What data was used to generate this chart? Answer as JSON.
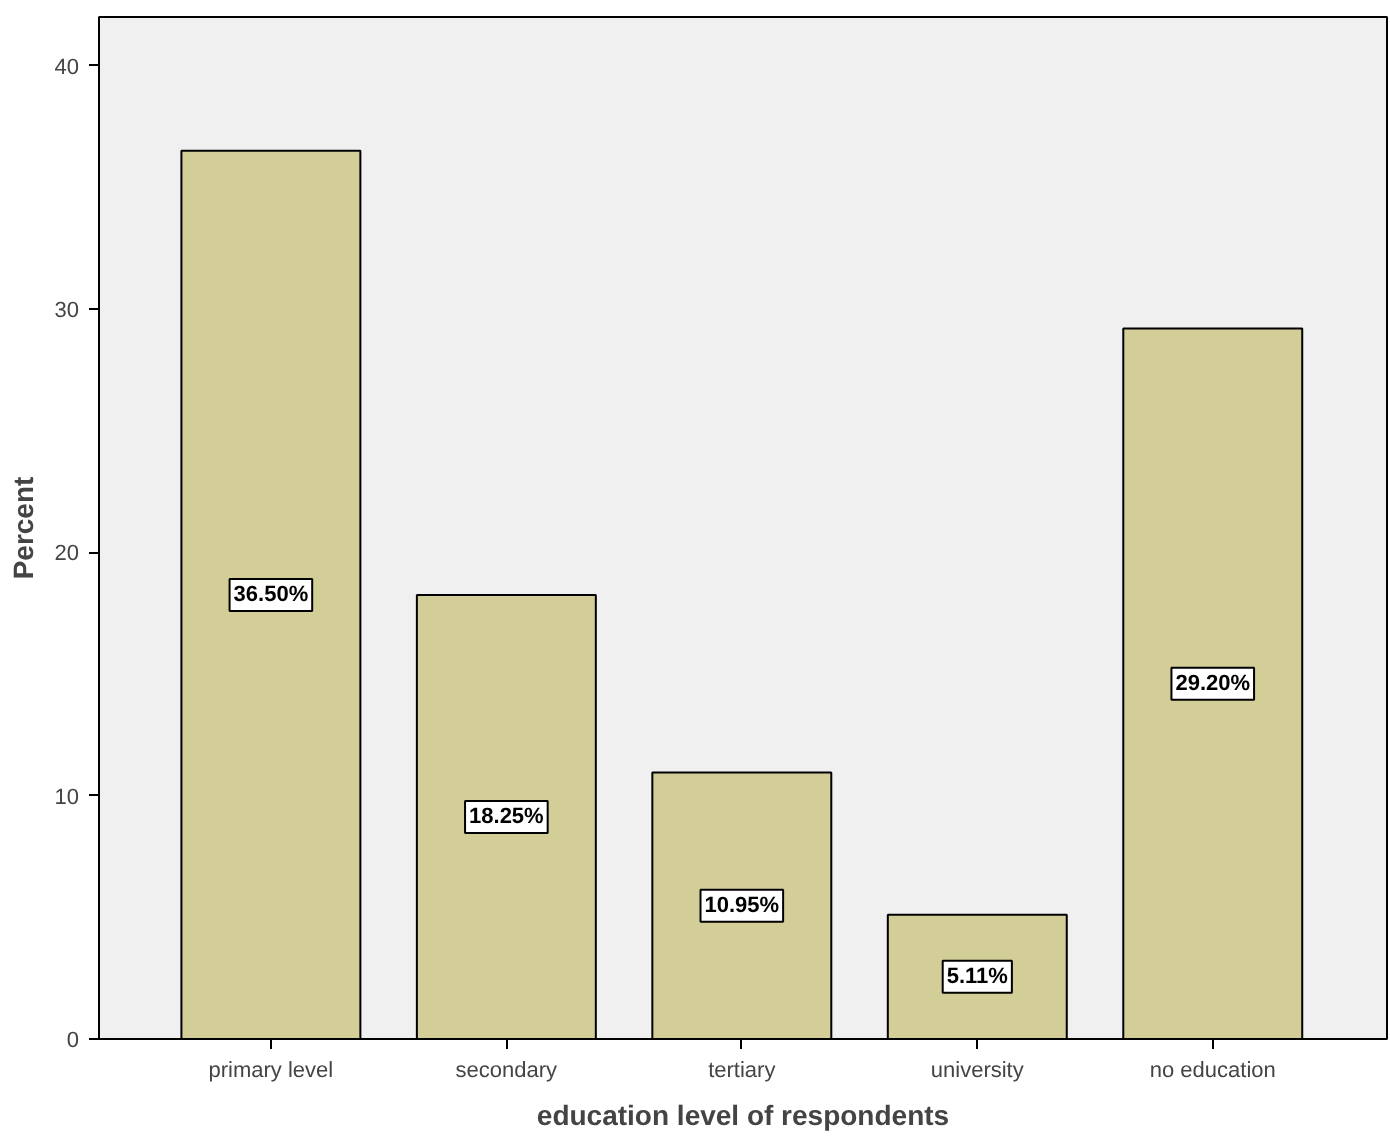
{
  "chart_data": {
    "type": "bar",
    "xlabel": "education level of respondents",
    "ylabel": "Percent",
    "categories": [
      "primary level",
      "secondary",
      "tertiary",
      "university",
      "no education"
    ],
    "values": [
      36.5,
      18.25,
      10.95,
      5.11,
      29.2
    ],
    "value_labels": [
      "36.50%",
      "18.25%",
      "10.95%",
      "5.11%",
      "29.20%"
    ],
    "color": "#d3ce97",
    "ylim": [
      0,
      42
    ],
    "yticks": [
      0,
      10,
      20,
      30,
      40
    ],
    "grid": false
  }
}
